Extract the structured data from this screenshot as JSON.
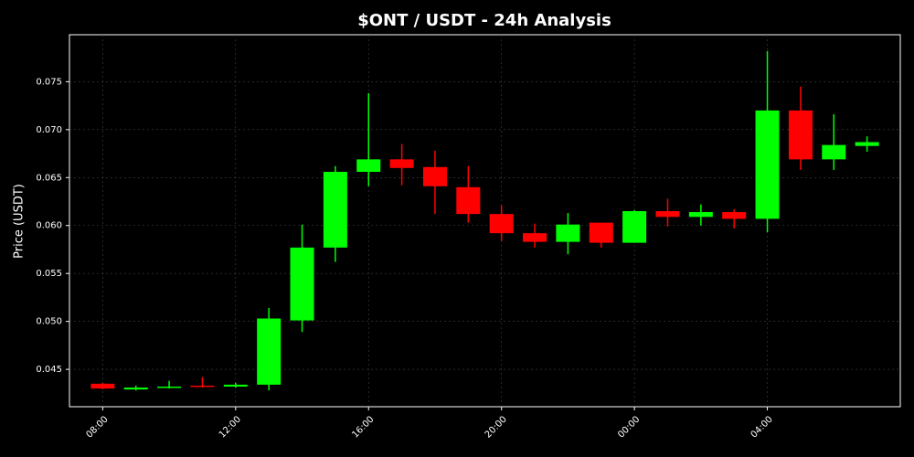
{
  "chart_data": {
    "type": "candlestick",
    "title": "$ONT / USDT - 24h Analysis",
    "y_label": "Price (USDT)",
    "categories": [
      "08:00",
      null,
      null,
      null,
      "12:00",
      null,
      null,
      null,
      "16:00",
      null,
      null,
      null,
      "20:00",
      null,
      null,
      null,
      "00:00",
      null,
      null,
      null,
      "04:00",
      null,
      null,
      null
    ],
    "open": [
      0.0435,
      0.0429,
      0.0431,
      0.0433,
      0.0432,
      0.0434,
      0.0501,
      0.0577,
      0.0656,
      0.0669,
      0.0661,
      0.064,
      0.0612,
      0.0592,
      0.0583,
      0.0603,
      0.0582,
      0.0615,
      0.0609,
      0.0614,
      0.0607,
      0.072,
      0.0669,
      0.0683
    ],
    "high": [
      0.0436,
      0.0433,
      0.0438,
      0.0442,
      0.0436,
      0.0514,
      0.0601,
      0.0662,
      0.0738,
      0.0685,
      0.0678,
      0.0662,
      0.0621,
      0.0602,
      0.0613,
      0.0603,
      0.0616,
      0.0628,
      0.0622,
      0.0617,
      0.0782,
      0.0745,
      0.0716,
      0.0693
    ],
    "low": [
      0.0429,
      0.0428,
      0.043,
      0.0431,
      0.0431,
      0.0428,
      0.0489,
      0.0562,
      0.0641,
      0.0642,
      0.0612,
      0.0603,
      0.0584,
      0.0577,
      0.057,
      0.0577,
      0.0582,
      0.0599,
      0.06,
      0.0597,
      0.0593,
      0.0658,
      0.0658,
      0.0677
    ],
    "close": [
      0.043,
      0.0431,
      0.0432,
      0.0432,
      0.0434,
      0.0503,
      0.0577,
      0.0656,
      0.0669,
      0.066,
      0.0641,
      0.0612,
      0.0592,
      0.0583,
      0.0601,
      0.0582,
      0.0615,
      0.0609,
      0.0614,
      0.0607,
      0.072,
      0.0669,
      0.0684,
      0.0687
    ],
    "up_color": "#00ff00",
    "down_color": "#ff0000",
    "ylim": [
      0.0411,
      0.0799
    ],
    "yticks": [
      0.045,
      {
        "value": 0.05,
        "label": "0.050"
      },
      0.055,
      {
        "value": 0.06,
        "label": "0.060"
      },
      0.065,
      {
        "value": 0.07,
        "label": "0.070"
      },
      0.075
    ],
    "grid": true
  }
}
